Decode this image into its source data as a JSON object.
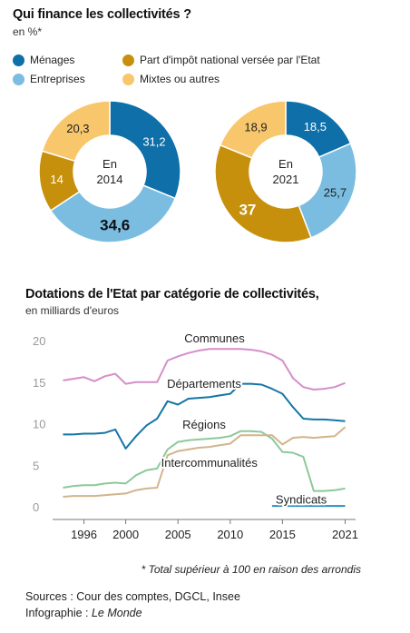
{
  "header": {
    "title": "Qui finance les collectivités ?",
    "unit": "en %*"
  },
  "legend": [
    {
      "label": "Ménages",
      "color": "#0f6fa8"
    },
    {
      "label": "Part d'impôt national versée par l'Etat",
      "color": "#c6900d"
    },
    {
      "label": "Entreprises",
      "color": "#7bbde0"
    },
    {
      "label": "Mixtes ou autres",
      "color": "#f8c76b"
    }
  ],
  "section2": {
    "title": "Dotations de l'Etat par catégorie de collectivités,",
    "unit": "en milliards d'euros"
  },
  "footnote": "* Total supérieur à 100 en raison des arrondis",
  "sources": "Sources : Cour des comptes, DGCL, Insee",
  "credit_prefix": "Infographie : ",
  "credit_brand": "Le Monde",
  "chart_data": [
    {
      "type": "pie",
      "center_label": [
        "En",
        "2014"
      ],
      "categories": [
        "Ménages",
        "Entreprises",
        "Part d'impôt national versée par l'Etat",
        "Mixtes ou autres"
      ],
      "values": [
        31.2,
        34.6,
        14,
        20.3
      ],
      "labels": [
        "31,2",
        "34,6",
        "14",
        "20,3"
      ],
      "bold": [
        "34,6"
      ]
    },
    {
      "type": "pie",
      "center_label": [
        "En",
        "2021"
      ],
      "categories": [
        "Ménages",
        "Entreprises",
        "Part d'impôt national versée par l'Etat",
        "Mixtes ou autres"
      ],
      "values": [
        18.5,
        25.7,
        37,
        18.9
      ],
      "labels": [
        "18,5",
        "25,7",
        "37",
        "18,9"
      ],
      "bold": [
        "37"
      ]
    },
    {
      "type": "line",
      "xlim": [
        1993,
        2022
      ],
      "ylim": [
        0,
        20
      ],
      "x_ticks": [
        1996,
        2000,
        2005,
        2010,
        2015,
        2021
      ],
      "y_ticks": [
        0,
        5,
        10,
        15,
        20
      ],
      "series": [
        {
          "name": "Communes",
          "color": "#d48fc8",
          "x": [
            1994,
            1995,
            1996,
            1997,
            1998,
            1999,
            2000,
            2001,
            2002,
            2003,
            2004,
            2005,
            2006,
            2007,
            2008,
            2009,
            2010,
            2011,
            2012,
            2013,
            2014,
            2015,
            2016,
            2017,
            2018,
            2019,
            2020,
            2021
          ],
          "values": [
            15.2,
            15.4,
            15.6,
            15.1,
            15.7,
            16.0,
            14.8,
            15.0,
            15.0,
            15.0,
            17.6,
            18.1,
            18.5,
            18.8,
            19.0,
            19.0,
            19.0,
            19.0,
            18.9,
            18.7,
            18.3,
            17.6,
            15.5,
            14.4,
            14.1,
            14.2,
            14.4,
            14.9
          ]
        },
        {
          "name": "Départements",
          "color": "#1575a6",
          "x": [
            1994,
            1995,
            1996,
            1997,
            1998,
            1999,
            2000,
            2001,
            2002,
            2003,
            2004,
            2005,
            2006,
            2007,
            2008,
            2009,
            2010,
            2011,
            2012,
            2013,
            2014,
            2015,
            2016,
            2017,
            2018,
            2019,
            2020,
            2021
          ],
          "values": [
            8.7,
            8.7,
            8.8,
            8.8,
            8.9,
            9.3,
            7.0,
            8.5,
            9.8,
            10.6,
            12.7,
            12.3,
            13.0,
            13.1,
            13.2,
            13.4,
            13.6,
            14.8,
            14.8,
            14.7,
            14.2,
            13.6,
            12.0,
            10.6,
            10.5,
            10.5,
            10.4,
            10.3
          ]
        },
        {
          "name": "Régions",
          "color": "#8cc99a",
          "x": [
            1994,
            1995,
            1996,
            1997,
            1998,
            1999,
            2000,
            2001,
            2002,
            2003,
            2004,
            2005,
            2006,
            2007,
            2008,
            2009,
            2010,
            2011,
            2012,
            2013,
            2014,
            2015,
            2016,
            2017,
            2018,
            2019,
            2020,
            2021
          ],
          "values": [
            2.3,
            2.5,
            2.6,
            2.6,
            2.8,
            2.9,
            2.8,
            3.8,
            4.4,
            4.6,
            6.9,
            7.8,
            8.0,
            8.1,
            8.2,
            8.3,
            8.5,
            9.1,
            9.1,
            9.0,
            8.2,
            6.6,
            6.5,
            6.0,
            1.9,
            1.9,
            2.0,
            2.2
          ]
        },
        {
          "name": "Intercommunalités",
          "color": "#d2b48c",
          "x": [
            1994,
            1995,
            1996,
            1997,
            1998,
            1999,
            2000,
            2001,
            2002,
            2003,
            2004,
            2005,
            2006,
            2007,
            2008,
            2009,
            2010,
            2011,
            2012,
            2013,
            2014,
            2015,
            2016,
            2017,
            2018,
            2019,
            2020,
            2021
          ],
          "values": [
            1.2,
            1.3,
            1.3,
            1.3,
            1.4,
            1.5,
            1.6,
            2.0,
            2.2,
            2.3,
            6.2,
            6.7,
            6.9,
            7.1,
            7.2,
            7.4,
            7.6,
            8.6,
            8.6,
            8.6,
            8.6,
            7.5,
            8.3,
            8.4,
            8.3,
            8.4,
            8.5,
            9.6
          ]
        },
        {
          "name": "Syndicats",
          "color": "#2a8fc0",
          "x": [
            2014,
            2015,
            2016,
            2017,
            2018,
            2019,
            2020,
            2021
          ],
          "values": [
            0.1,
            0.1,
            0.1,
            0.1,
            0.1,
            0.1,
            0.1,
            0.1
          ]
        }
      ]
    }
  ]
}
